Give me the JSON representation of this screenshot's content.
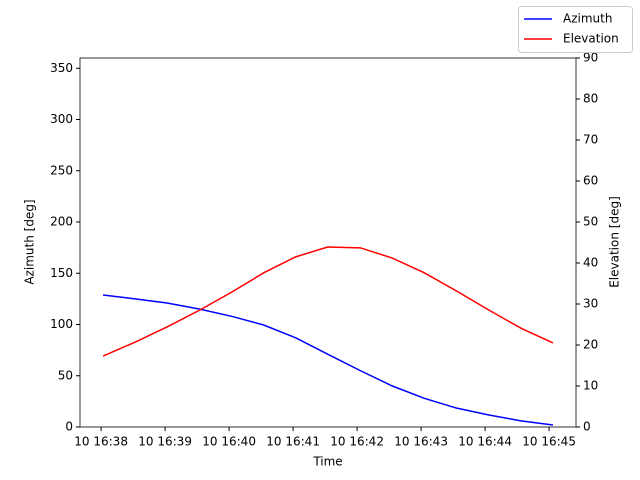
{
  "chart_data": {
    "type": "line",
    "xlabel": "Time",
    "ylabel": "Azimuth [deg]",
    "y2label": "Elevation [deg]",
    "x": [
      998.03,
      998.53,
      999.03,
      999.54,
      1000.04,
      1000.54,
      1001.04,
      1001.54,
      1002.05,
      1002.55,
      1003.05,
      1003.55,
      1004.06,
      1004.56,
      1005.06
    ],
    "series": [
      {
        "name": "Azimuth",
        "color": "#0000ff",
        "axis": "y",
        "values": [
          128.8,
          125,
          121,
          115,
          108,
          99.5,
          87,
          71,
          55,
          40,
          28,
          18.5,
          11.7,
          6,
          2
        ]
      },
      {
        "name": "Elevation",
        "color": "#ff0000",
        "axis": "y2",
        "values": [
          17.3,
          20.7,
          24.4,
          28.5,
          32.9,
          37.6,
          41.5,
          43.9,
          43.7,
          41.2,
          37.6,
          33.2,
          28.5,
          24.1,
          20.5
        ]
      }
    ],
    "xlim": [
      997.67,
      1005.42
    ],
    "xticks": [
      {
        "value": 998,
        "label": "10 16:38"
      },
      {
        "value": 999,
        "label": "10 16:39"
      },
      {
        "value": 1000,
        "label": "10 16:40"
      },
      {
        "value": 1001,
        "label": "10 16:41"
      },
      {
        "value": 1002,
        "label": "10 16:42"
      },
      {
        "value": 1003,
        "label": "10 16:43"
      },
      {
        "value": 1004,
        "label": "10 16:44"
      },
      {
        "value": 1005,
        "label": "10 16:45"
      }
    ],
    "ylim": [
      0,
      360
    ],
    "yticks": [
      0,
      50,
      100,
      150,
      200,
      250,
      300,
      350
    ],
    "y2lim": [
      0,
      90
    ],
    "y2ticks": [
      0,
      10,
      20,
      30,
      40,
      50,
      60,
      70,
      80,
      90
    ],
    "legend": "upper right"
  }
}
